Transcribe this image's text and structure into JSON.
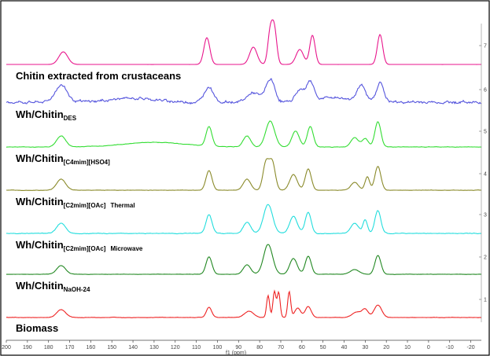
{
  "chart_data": {
    "type": "line",
    "title": "",
    "xlabel": "f1 (ppm)",
    "ylabel": "",
    "xlim": [
      200,
      -25
    ],
    "x_reversed": true,
    "grid": false,
    "x_ticks": [
      "200",
      "190",
      "180",
      "170",
      "160",
      "150",
      "140",
      "130",
      "120",
      "110",
      "100",
      "90",
      "80",
      "70",
      "60",
      "50",
      "40",
      "30",
      "20",
      "10",
      "0",
      "-10",
      "-20"
    ],
    "trace_index_labels": [
      "7",
      "6",
      "5",
      "4",
      "3",
      "2",
      "1"
    ],
    "sample_labels": [
      {
        "main": "Chitin extracted from crustaceans",
        "sub": "",
        "suffix": ""
      },
      {
        "main": "Wh/Chitin",
        "sub": "DES",
        "suffix": ""
      },
      {
        "main": "Wh/Chitin",
        "sub": "[C4mim][HSO4]",
        "suffix": ""
      },
      {
        "main": "Wh/Chitin",
        "sub": "[C2mim][OAc]",
        "suffix": "Thermal"
      },
      {
        "main": "Wh/Chitin",
        "sub": "[C2mim][OAc]",
        "suffix": "Microwave"
      },
      {
        "main": "Wh/Chitin",
        "sub": "NaOH-24",
        "suffix": ""
      },
      {
        "main": "Biomass",
        "sub": "",
        "suffix": ""
      }
    ],
    "series": [
      {
        "color": "#e8168c",
        "noise": 0.05,
        "baseline_slope": 0,
        "base_peaks": [
          [
            173,
            16,
            3
          ],
          [
            105,
            34,
            2
          ],
          [
            83,
            22,
            2.5
          ],
          [
            75,
            41,
            1.6
          ],
          [
            73,
            43,
            1.6
          ],
          [
            61,
            19,
            2.5
          ],
          [
            55,
            37,
            1.8
          ],
          [
            23,
            38,
            1.8
          ]
        ]
      },
      {
        "color": "#5555dd",
        "noise": 2.2,
        "baseline_slope": 0,
        "base_peaks": [
          [
            174,
            22,
            4
          ],
          [
            104,
            20,
            3
          ],
          [
            83,
            12,
            4
          ],
          [
            75,
            29,
            3
          ],
          [
            61,
            15,
            3
          ],
          [
            56,
            25,
            2.5
          ],
          [
            32,
            20,
            3
          ],
          [
            23,
            25,
            2.5
          ],
          [
            140,
            5,
            15
          ],
          [
            45,
            6,
            10
          ]
        ]
      },
      {
        "color": "#33dd33",
        "noise": 0.4,
        "baseline_slope": 0,
        "base_peaks": [
          [
            174,
            14,
            3
          ],
          [
            130,
            6,
            20
          ],
          [
            104,
            25,
            2
          ],
          [
            86,
            14,
            2.5
          ],
          [
            75,
            33,
            3
          ],
          [
            63,
            20,
            2.5
          ],
          [
            56,
            26,
            2
          ],
          [
            35,
            12,
            2.5
          ],
          [
            30,
            11,
            2
          ],
          [
            24,
            32,
            2
          ]
        ]
      },
      {
        "color": "#8a8a2a",
        "noise": 0.3,
        "baseline_slope": 0,
        "base_peaks": [
          [
            174,
            14,
            3
          ],
          [
            104,
            25,
            2
          ],
          [
            86,
            14,
            2.5
          ],
          [
            77,
            35,
            2
          ],
          [
            74,
            35,
            2
          ],
          [
            64,
            20,
            2.5
          ],
          [
            57,
            27,
            2
          ],
          [
            35,
            10,
            2.5
          ],
          [
            29,
            17,
            1.5
          ],
          [
            24,
            30,
            2
          ]
        ]
      },
      {
        "color": "#22dddd",
        "noise": 0.5,
        "baseline_slope": 0,
        "base_peaks": [
          [
            174,
            13,
            3
          ],
          [
            104,
            24,
            2
          ],
          [
            86,
            14,
            2.5
          ],
          [
            76,
            37,
            3
          ],
          [
            64,
            22,
            2.5
          ],
          [
            57,
            27,
            2
          ],
          [
            35,
            13,
            2.5
          ],
          [
            30,
            17,
            1.5
          ],
          [
            24,
            29,
            2
          ]
        ]
      },
      {
        "color": "#228822",
        "noise": 0.25,
        "baseline_slope": 0,
        "base_peaks": [
          [
            174,
            11,
            3
          ],
          [
            104,
            22,
            2
          ],
          [
            86,
            12,
            2.5
          ],
          [
            76,
            38,
            3
          ],
          [
            64,
            20,
            2.5
          ],
          [
            57,
            23,
            2
          ],
          [
            35,
            6,
            3
          ],
          [
            24,
            24,
            2
          ]
        ]
      },
      {
        "color": "#ee2222",
        "noise": 0.3,
        "baseline_slope": 0,
        "base_peaks": [
          [
            174,
            10,
            3
          ],
          [
            104,
            13,
            1.8
          ],
          [
            85,
            8,
            3
          ],
          [
            76,
            28,
            1
          ],
          [
            73,
            33,
            1
          ],
          [
            71,
            32,
            1
          ],
          [
            66,
            33,
            1
          ],
          [
            62,
            12,
            2
          ],
          [
            57,
            14,
            2
          ],
          [
            34,
            7,
            3
          ],
          [
            30,
            10,
            2
          ],
          [
            24,
            16,
            2.5
          ]
        ]
      }
    ]
  }
}
